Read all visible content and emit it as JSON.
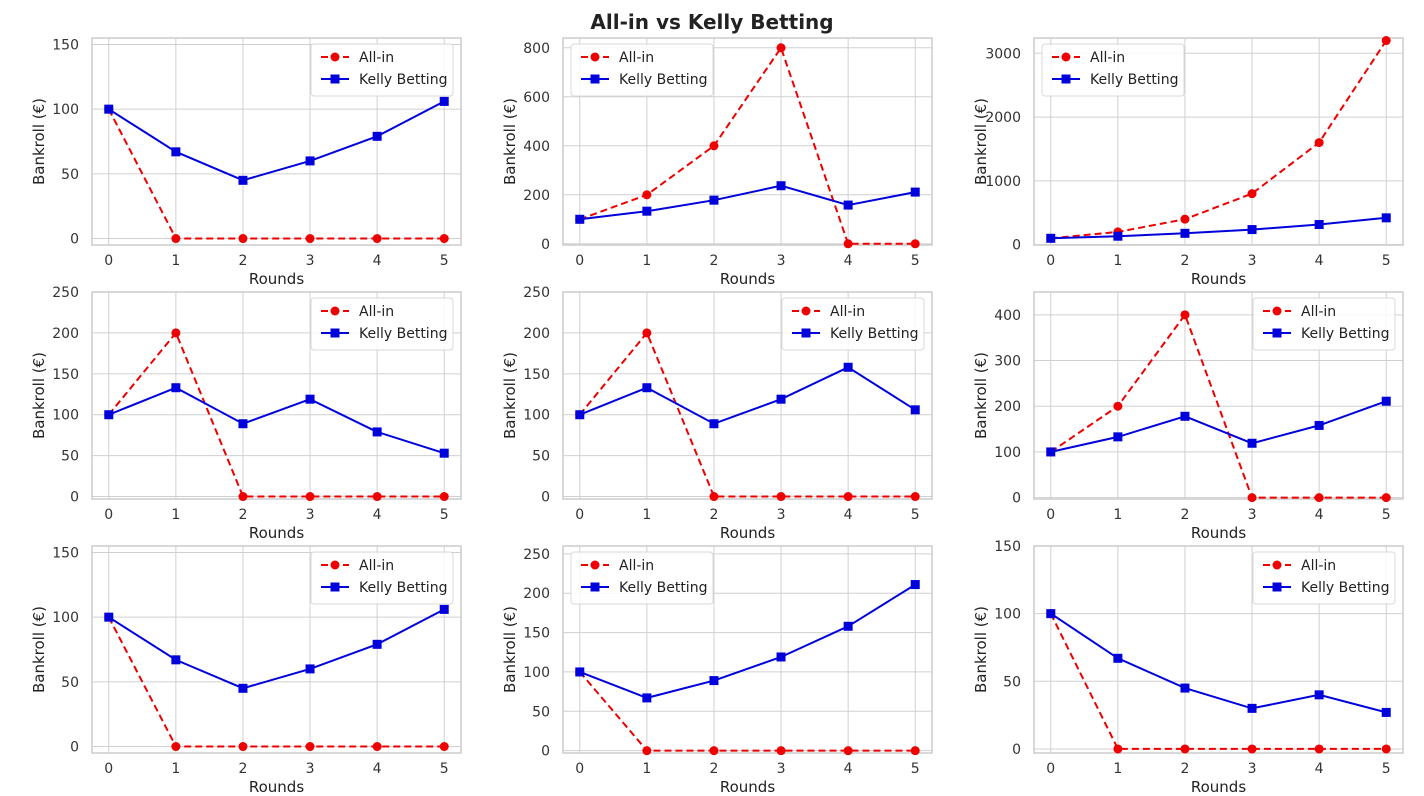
{
  "title": "All-in vs Kelly Betting",
  "colors": {
    "grid": "#d0d0d0",
    "frame": "#cccccc",
    "allin": "#ee0000",
    "kelly": "#0000dd"
  },
  "chart_data": [
    {
      "type": "line",
      "title": "",
      "xlabel": "Rounds",
      "ylabel": "Bankroll (€)",
      "x": [
        0,
        1,
        2,
        3,
        4,
        5
      ],
      "xlim": [
        -0.25,
        5.25
      ],
      "ylim": [
        -5,
        155
      ],
      "yticks": [
        0,
        50,
        100,
        150
      ],
      "legend": "top-right",
      "series": [
        {
          "name": "All-in",
          "style": "dashed",
          "marker": "circle",
          "values": [
            100,
            0,
            0,
            0,
            0,
            0
          ]
        },
        {
          "name": "Kelly Betting",
          "style": "solid",
          "marker": "square",
          "values": [
            100,
            67,
            45,
            60,
            79,
            106
          ]
        }
      ]
    },
    {
      "type": "line",
      "title": "",
      "xlabel": "Rounds",
      "ylabel": "Bankroll (€)",
      "x": [
        0,
        1,
        2,
        3,
        4,
        5
      ],
      "xlim": [
        -0.25,
        5.25
      ],
      "ylim": [
        -5,
        840
      ],
      "yticks": [
        0,
        200,
        400,
        600,
        800
      ],
      "legend": "top-left",
      "series": [
        {
          "name": "All-in",
          "style": "dashed",
          "marker": "circle",
          "values": [
            100,
            200,
            400,
            800,
            0,
            0
          ]
        },
        {
          "name": "Kelly Betting",
          "style": "solid",
          "marker": "square",
          "values": [
            100,
            133,
            178,
            237,
            158,
            211
          ]
        }
      ]
    },
    {
      "type": "line",
      "title": "",
      "xlabel": "Rounds",
      "ylabel": "Bankroll (€)",
      "x": [
        0,
        1,
        2,
        3,
        4,
        5
      ],
      "xlim": [
        -0.25,
        5.25
      ],
      "ylim": [
        -5,
        3240
      ],
      "yticks": [
        0,
        1000,
        2000,
        3000
      ],
      "legend": "top-left",
      "series": [
        {
          "name": "All-in",
          "style": "dashed",
          "marker": "circle",
          "values": [
            100,
            200,
            400,
            800,
            1600,
            3200
          ]
        },
        {
          "name": "Kelly Betting",
          "style": "solid",
          "marker": "square",
          "values": [
            100,
            133,
            178,
            237,
            316,
            421
          ]
        }
      ]
    },
    {
      "type": "line",
      "title": "",
      "xlabel": "Rounds",
      "ylabel": "Bankroll (€)",
      "x": [
        0,
        1,
        2,
        3,
        4,
        5
      ],
      "xlim": [
        -0.25,
        5.25
      ],
      "ylim": [
        -3,
        250
      ],
      "yticks": [
        0,
        50,
        100,
        150,
        200,
        250
      ],
      "legend": "top-right",
      "series": [
        {
          "name": "All-in",
          "style": "dashed",
          "marker": "circle",
          "values": [
            100,
            200,
            0,
            0,
            0,
            0
          ]
        },
        {
          "name": "Kelly Betting",
          "style": "solid",
          "marker": "square",
          "values": [
            100,
            133,
            89,
            119,
            79,
            53
          ]
        }
      ]
    },
    {
      "type": "line",
      "title": "",
      "xlabel": "Rounds",
      "ylabel": "Bankroll (€)",
      "x": [
        0,
        1,
        2,
        3,
        4,
        5
      ],
      "xlim": [
        -0.25,
        5.25
      ],
      "ylim": [
        -3,
        250
      ],
      "yticks": [
        0,
        50,
        100,
        150,
        200,
        250
      ],
      "legend": "top-right",
      "series": [
        {
          "name": "All-in",
          "style": "dashed",
          "marker": "circle",
          "values": [
            100,
            200,
            0,
            0,
            0,
            0
          ]
        },
        {
          "name": "Kelly Betting",
          "style": "solid",
          "marker": "square",
          "values": [
            100,
            133,
            89,
            119,
            158,
            106
          ]
        }
      ]
    },
    {
      "type": "line",
      "title": "",
      "xlabel": "Rounds",
      "ylabel": "Bankroll (€)",
      "x": [
        0,
        1,
        2,
        3,
        4,
        5
      ],
      "xlim": [
        -0.25,
        5.25
      ],
      "ylim": [
        -3,
        450
      ],
      "yticks": [
        0,
        100,
        200,
        300,
        400
      ],
      "legend": "top-right",
      "series": [
        {
          "name": "All-in",
          "style": "dashed",
          "marker": "circle",
          "values": [
            100,
            200,
            400,
            0,
            0,
            0
          ]
        },
        {
          "name": "Kelly Betting",
          "style": "solid",
          "marker": "square",
          "values": [
            100,
            133,
            178,
            119,
            158,
            211
          ]
        }
      ]
    },
    {
      "type": "line",
      "title": "",
      "xlabel": "Rounds",
      "ylabel": "Bankroll (€)",
      "x": [
        0,
        1,
        2,
        3,
        4,
        5
      ],
      "xlim": [
        -0.25,
        5.25
      ],
      "ylim": [
        -5,
        155
      ],
      "yticks": [
        0,
        50,
        100,
        150
      ],
      "legend": "top-right",
      "series": [
        {
          "name": "All-in",
          "style": "dashed",
          "marker": "circle",
          "values": [
            100,
            0,
            0,
            0,
            0,
            0
          ]
        },
        {
          "name": "Kelly Betting",
          "style": "solid",
          "marker": "square",
          "values": [
            100,
            67,
            45,
            60,
            79,
            106
          ]
        }
      ]
    },
    {
      "type": "line",
      "title": "",
      "xlabel": "Rounds",
      "ylabel": "Bankroll (€)",
      "x": [
        0,
        1,
        2,
        3,
        4,
        5
      ],
      "xlim": [
        -0.25,
        5.25
      ],
      "ylim": [
        -3,
        260
      ],
      "yticks": [
        0,
        50,
        100,
        150,
        200,
        250
      ],
      "legend": "top-left",
      "series": [
        {
          "name": "All-in",
          "style": "dashed",
          "marker": "circle",
          "values": [
            100,
            0,
            0,
            0,
            0,
            0
          ]
        },
        {
          "name": "Kelly Betting",
          "style": "solid",
          "marker": "square",
          "values": [
            100,
            67,
            89,
            119,
            158,
            211
          ]
        }
      ]
    },
    {
      "type": "line",
      "title": "",
      "xlabel": "Rounds",
      "ylabel": "Bankroll (€)",
      "x": [
        0,
        1,
        2,
        3,
        4,
        5
      ],
      "xlim": [
        -0.25,
        5.25
      ],
      "ylim": [
        -3,
        150
      ],
      "yticks": [
        0,
        50,
        100,
        150
      ],
      "legend": "top-right",
      "series": [
        {
          "name": "All-in",
          "style": "dashed",
          "marker": "circle",
          "values": [
            100,
            0,
            0,
            0,
            0,
            0
          ]
        },
        {
          "name": "Kelly Betting",
          "style": "solid",
          "marker": "square",
          "values": [
            100,
            67,
            45,
            30,
            40,
            27
          ]
        }
      ]
    }
  ]
}
